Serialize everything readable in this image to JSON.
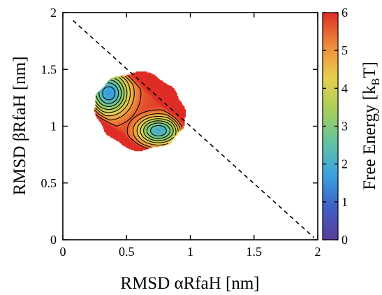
{
  "chart_data": {
    "type": "heatmap",
    "title": "",
    "xlabel": "RMSD αRfaH [nm]",
    "ylabel": "RMSD βRfaH [nm]",
    "colorbar_label": "Free Energy [kBT]",
    "colorbar_label_main": "Free Energy [k",
    "colorbar_label_sub": "B",
    "colorbar_label_end": "T]",
    "xlim": [
      0,
      2
    ],
    "ylim": [
      0,
      2
    ],
    "x_ticks": [
      "0",
      "0.5",
      "1",
      "1.5",
      "2"
    ],
    "y_ticks": [
      "0",
      "0.5",
      "1",
      "1.5",
      "2"
    ],
    "colorbar_range": [
      0,
      6
    ],
    "colorbar_ticks": [
      "0",
      "1",
      "2",
      "3",
      "4",
      "5",
      "6"
    ],
    "colormap": [
      "#5a3d9a",
      "#3f5fc4",
      "#3aa3e0",
      "#63c2a0",
      "#a6cf5a",
      "#e7cf4e",
      "#ef8a3a",
      "#de2d26"
    ],
    "contour_levels": [
      0.5,
      1,
      1.5,
      2,
      2.5,
      3,
      3.5,
      4,
      4.5,
      5,
      5.5
    ],
    "minima": [
      {
        "x": 0.36,
        "y": 1.29,
        "free_energy": 0.0
      },
      {
        "x": 0.75,
        "y": 0.96,
        "free_energy": 0.2
      }
    ],
    "diagonal_line": {
      "from": [
        0.08,
        1.93
      ],
      "to": [
        1.97,
        0.02
      ],
      "style": "dashed"
    },
    "grid": false
  }
}
